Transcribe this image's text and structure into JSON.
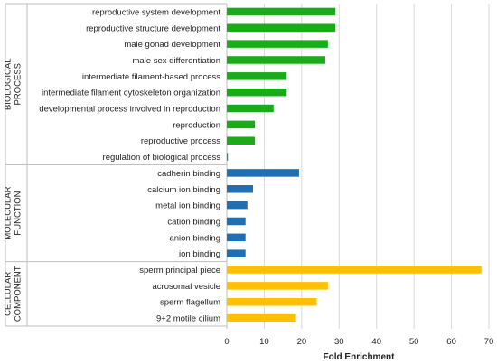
{
  "chart_data": {
    "type": "bar",
    "orientation": "horizontal",
    "xlabel": "Fold Enrichment",
    "xlim": [
      0,
      70
    ],
    "xticks": [
      0,
      10,
      20,
      30,
      40,
      50,
      60,
      70
    ],
    "grid": "vertical",
    "legend": "none",
    "groups": [
      {
        "label": "BIOLOGICAL PROCESS",
        "label_lines": [
          "BIOLOGICAL",
          "PROCESS"
        ],
        "color": "#1aaa1a",
        "categories": [
          "reproductive system development",
          "reproductive structure development",
          "male gonad development",
          "male sex differentiation",
          "intermediate filament-based process",
          "intermediate filament cytoskeleton organization",
          "developmental process involved in reproduction",
          "reproduction",
          "reproductive process",
          "regulation of biological process"
        ],
        "values": [
          29.0,
          29.0,
          27.0,
          26.3,
          16.0,
          16.0,
          12.5,
          7.5,
          7.5,
          0.3
        ]
      },
      {
        "label": "MOLECULAR FUNCTION",
        "label_lines": [
          "MOLECULAR",
          "FUNCTION"
        ],
        "color": "#1f6fb2",
        "categories": [
          "cadherin binding",
          "calcium ion binding",
          "metal ion binding",
          "cation binding",
          "anion binding",
          "ion binding"
        ],
        "values": [
          19.3,
          7.0,
          5.5,
          5.0,
          5.0,
          5.0
        ]
      },
      {
        "label": "CELLULAR COMPONENT",
        "label_lines": [
          "CELLULAR",
          "COMPONENT"
        ],
        "color": "#ffc000",
        "categories": [
          "sperm principal piece",
          "acrosomal vesicle",
          "sperm flagellum",
          "9+2 motile cilium"
        ],
        "values": [
          68.0,
          27.0,
          24.0,
          18.5
        ]
      }
    ]
  }
}
